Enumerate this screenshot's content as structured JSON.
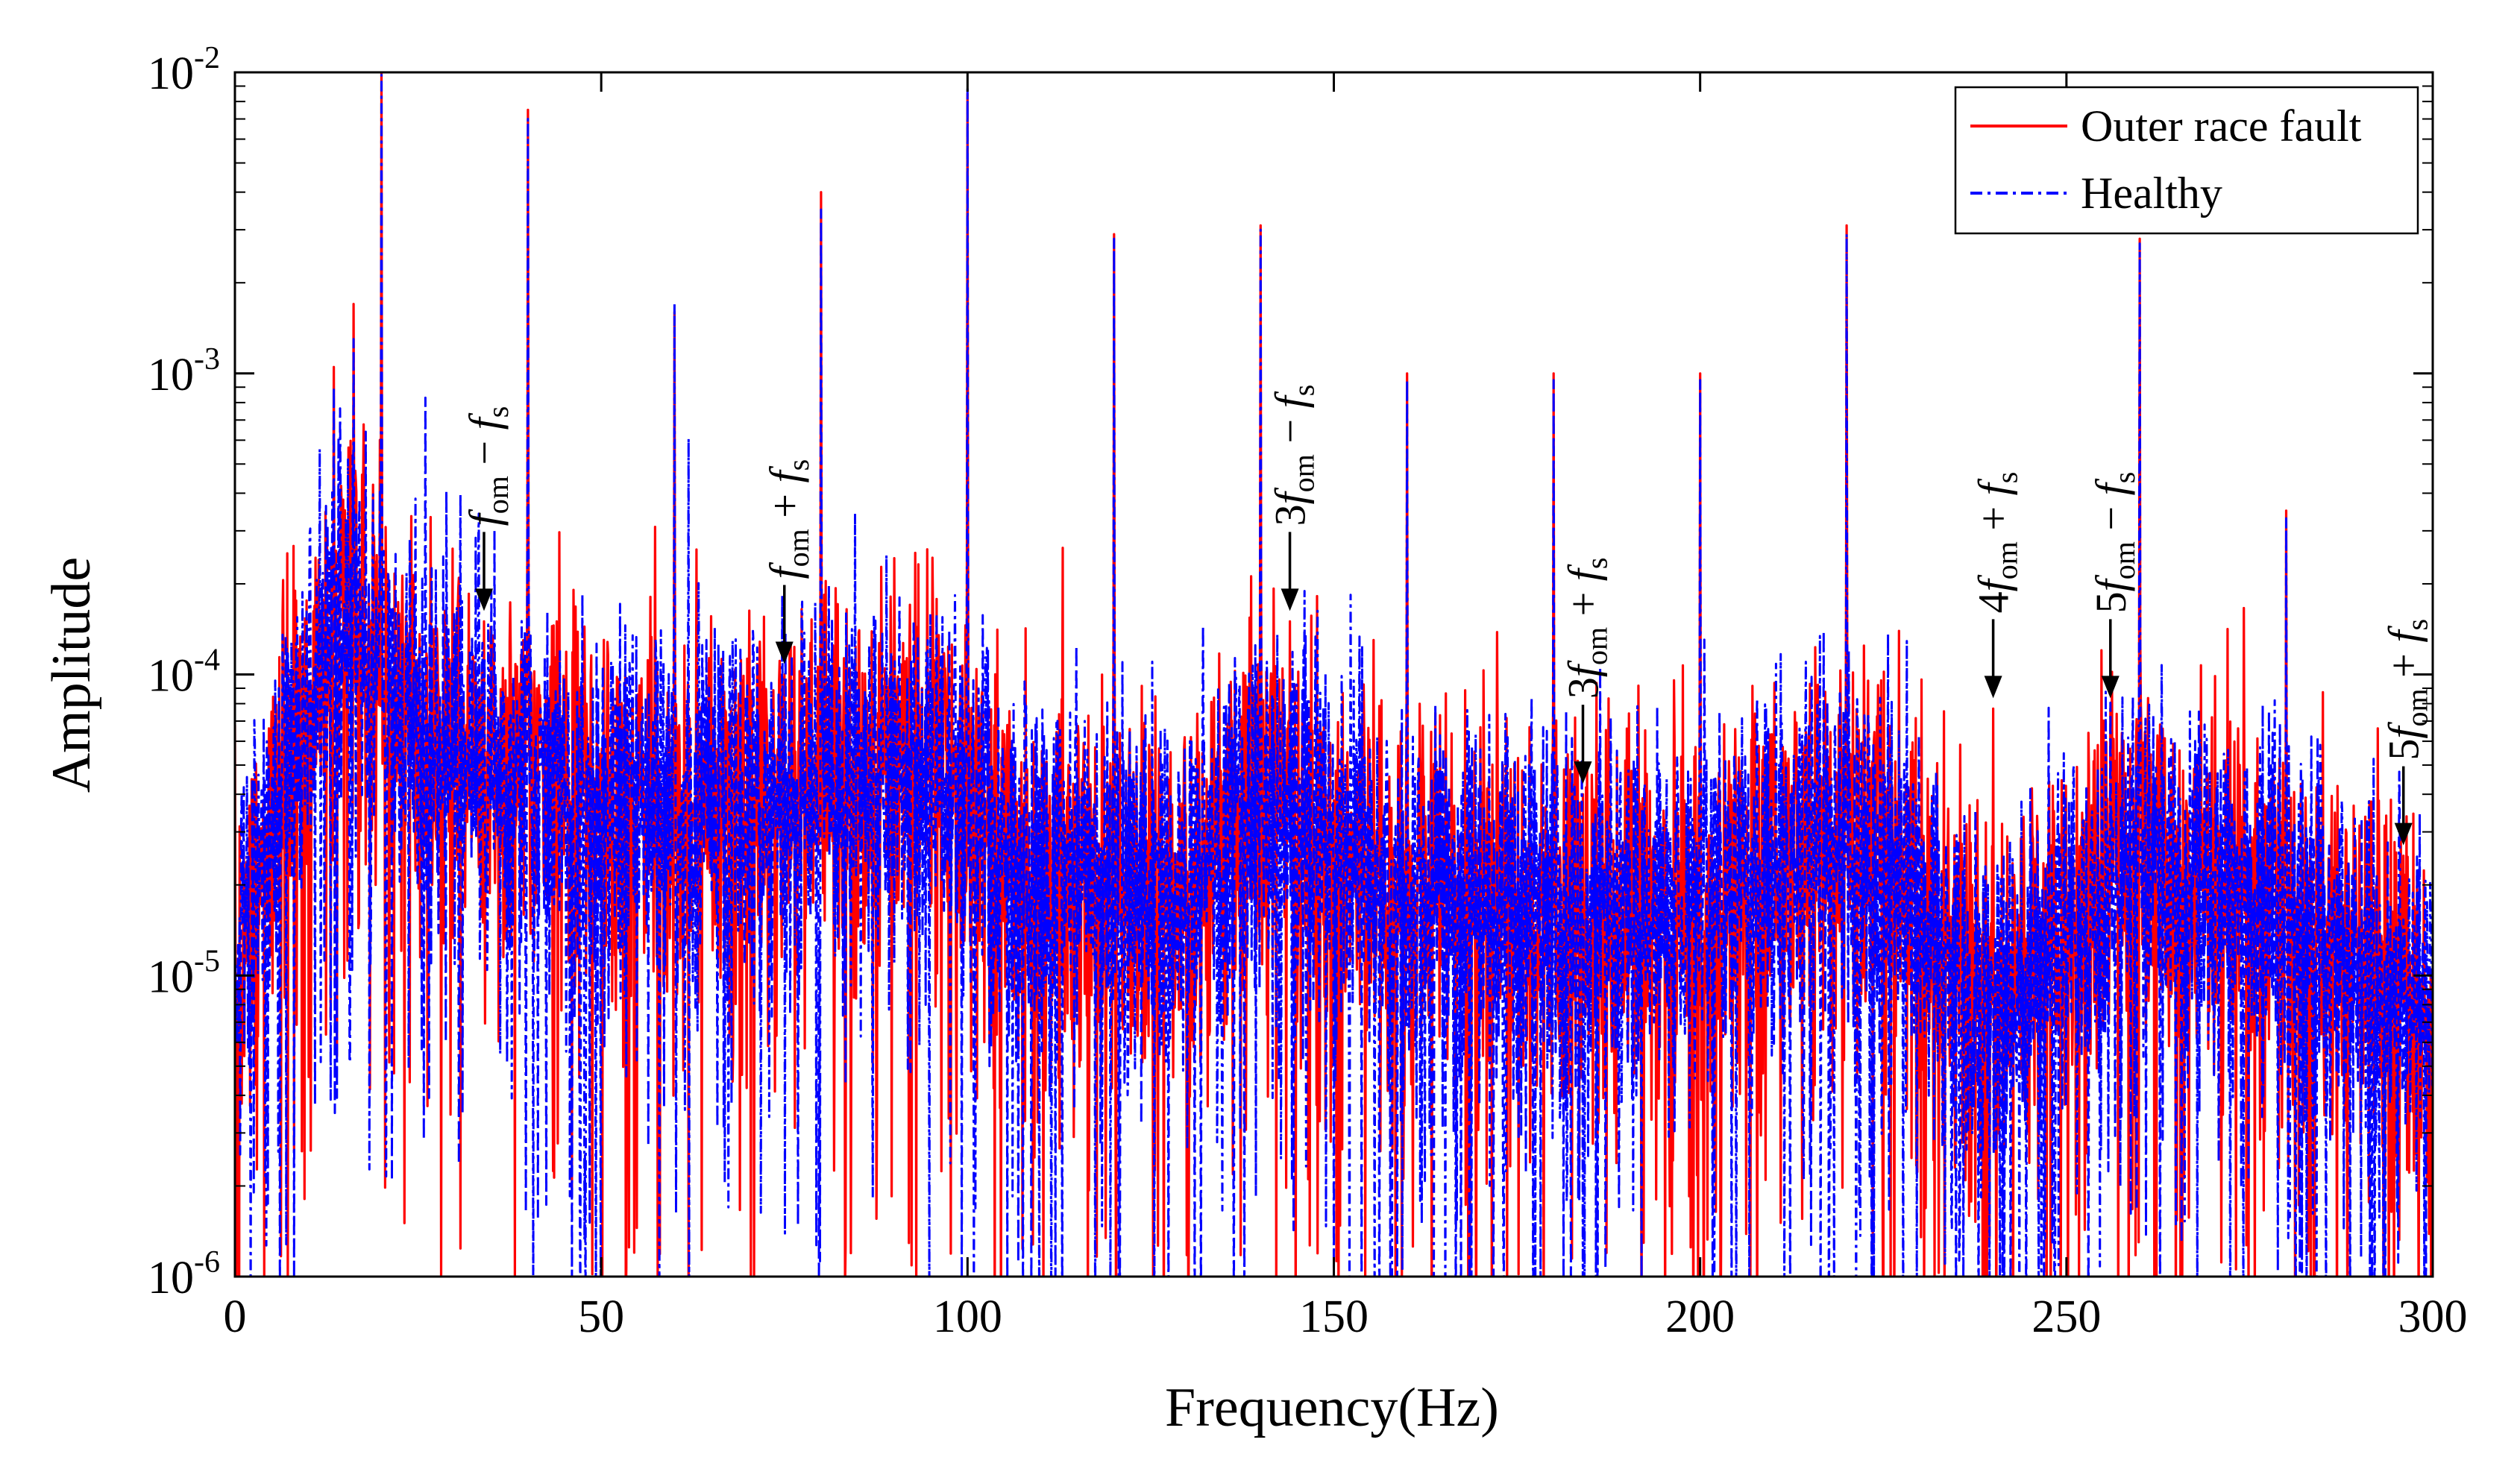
{
  "chart_data": {
    "type": "line",
    "title": "",
    "xlabel": "Frequency(Hz)",
    "ylabel": "Amplitude",
    "xlim": [
      0,
      300
    ],
    "ylim": [
      1e-06,
      0.01
    ],
    "yscale": "log",
    "grid": false,
    "legend_position": "top-right",
    "x_ticks": [
      0,
      50,
      100,
      150,
      200,
      250,
      300
    ],
    "x_tick_labels": [
      "0",
      "50",
      "100",
      "150",
      "200",
      "250",
      "300"
    ],
    "y_ticks": [
      1e-06,
      1e-05,
      0.0001,
      0.001,
      0.01
    ],
    "y_tick_labels": [
      {
        "base": "10",
        "exp": "-6"
      },
      {
        "base": "10",
        "exp": "-5"
      },
      {
        "base": "10",
        "exp": "-4"
      },
      {
        "base": "10",
        "exp": "-3"
      },
      {
        "base": "10",
        "exp": "-2"
      }
    ],
    "series": [
      {
        "name": "Outer race fault",
        "color": "#ff0000",
        "style": "solid",
        "peaks": [
          {
            "x": 13.5,
            "y": 0.00105
          },
          {
            "x": 16.2,
            "y": 0.0017
          },
          {
            "x": 20.0,
            "y": 0.0105
          },
          {
            "x": 34.0,
            "y": 0.00015
          },
          {
            "x": 40.0,
            "y": 0.0075
          },
          {
            "x": 60.0,
            "y": 0.0016
          },
          {
            "x": 63.0,
            "y": 0.00026
          },
          {
            "x": 75.0,
            "y": 0.0001
          },
          {
            "x": 80.0,
            "y": 0.004
          },
          {
            "x": 100.0,
            "y": 0.0085
          },
          {
            "x": 120.0,
            "y": 0.0029
          },
          {
            "x": 140.0,
            "y": 0.0031
          },
          {
            "x": 144.0,
            "y": 0.00015
          },
          {
            "x": 160.0,
            "y": 0.001
          },
          {
            "x": 180.0,
            "y": 0.001
          },
          {
            "x": 184.0,
            "y": 4e-05
          },
          {
            "x": 200.0,
            "y": 0.001
          },
          {
            "x": 220.0,
            "y": 0.0031
          },
          {
            "x": 240.0,
            "y": 7.7e-05
          },
          {
            "x": 256.0,
            "y": 7.7e-05
          },
          {
            "x": 260.0,
            "y": 0.0028
          },
          {
            "x": 280.0,
            "y": 0.00035
          },
          {
            "x": 296.0,
            "y": 2.5e-05
          }
        ]
      },
      {
        "name": "Healthy",
        "color": "#0000ff",
        "style": "dashdot",
        "peaks": [
          {
            "x": 13.5,
            "y": 0.0009
          },
          {
            "x": 16.2,
            "y": 0.0013
          },
          {
            "x": 20.0,
            "y": 0.0098
          },
          {
            "x": 26.0,
            "y": 0.00083
          },
          {
            "x": 40.0,
            "y": 0.007
          },
          {
            "x": 60.0,
            "y": 0.0017
          },
          {
            "x": 80.0,
            "y": 0.0035
          },
          {
            "x": 100.0,
            "y": 0.0088
          },
          {
            "x": 120.0,
            "y": 0.0028
          },
          {
            "x": 140.0,
            "y": 0.003
          },
          {
            "x": 160.0,
            "y": 0.00095
          },
          {
            "x": 180.0,
            "y": 0.00095
          },
          {
            "x": 200.0,
            "y": 0.00095
          },
          {
            "x": 220.0,
            "y": 0.0029
          },
          {
            "x": 260.0,
            "y": 0.0027
          },
          {
            "x": 280.0,
            "y": 0.00033
          }
        ]
      }
    ],
    "noise_floor": [
      {
        "x": 0,
        "y": 1e-05
      },
      {
        "x": 5,
        "y": 3e-05
      },
      {
        "x": 10,
        "y": 8e-05
      },
      {
        "x": 15,
        "y": 0.00017
      },
      {
        "x": 25,
        "y": 6e-05
      },
      {
        "x": 50,
        "y": 3.5e-05
      },
      {
        "x": 75,
        "y": 4e-05
      },
      {
        "x": 95,
        "y": 5e-05
      },
      {
        "x": 110,
        "y": 2e-05
      },
      {
        "x": 130,
        "y": 1.8e-05
      },
      {
        "x": 140,
        "y": 4e-05
      },
      {
        "x": 160,
        "y": 1.8e-05
      },
      {
        "x": 200,
        "y": 1.5e-05
      },
      {
        "x": 220,
        "y": 3e-05
      },
      {
        "x": 240,
        "y": 8e-06
      },
      {
        "x": 260,
        "y": 2.5e-05
      },
      {
        "x": 280,
        "y": 1.5e-05
      },
      {
        "x": 300,
        "y": 8e-06
      }
    ],
    "annotations": [
      {
        "x": 34.0,
        "y": 0.00015,
        "coef": "",
        "op": "−",
        "label": "f om − f s"
      },
      {
        "x": 75.0,
        "y": 0.0001,
        "coef": "",
        "op": "+",
        "label": "f om + f s"
      },
      {
        "x": 144.0,
        "y": 0.00015,
        "coef": "3",
        "op": "−",
        "label": "3f om − f s"
      },
      {
        "x": 184.0,
        "y": 4e-05,
        "coef": "3",
        "op": "+",
        "label": "3f om + f s"
      },
      {
        "x": 240.0,
        "y": 7.7e-05,
        "coef": "4",
        "op": "+",
        "label": "4f om + f s"
      },
      {
        "x": 256.0,
        "y": 7.7e-05,
        "coef": "5",
        "op": "−",
        "label": "5f om − f s"
      },
      {
        "x": 296.0,
        "y": 2.5e-05,
        "coef": "5",
        "op": "+",
        "label": "5f om + f s"
      }
    ],
    "annotation_symbols": {
      "f": "f",
      "om": "om",
      "s": "s"
    }
  }
}
